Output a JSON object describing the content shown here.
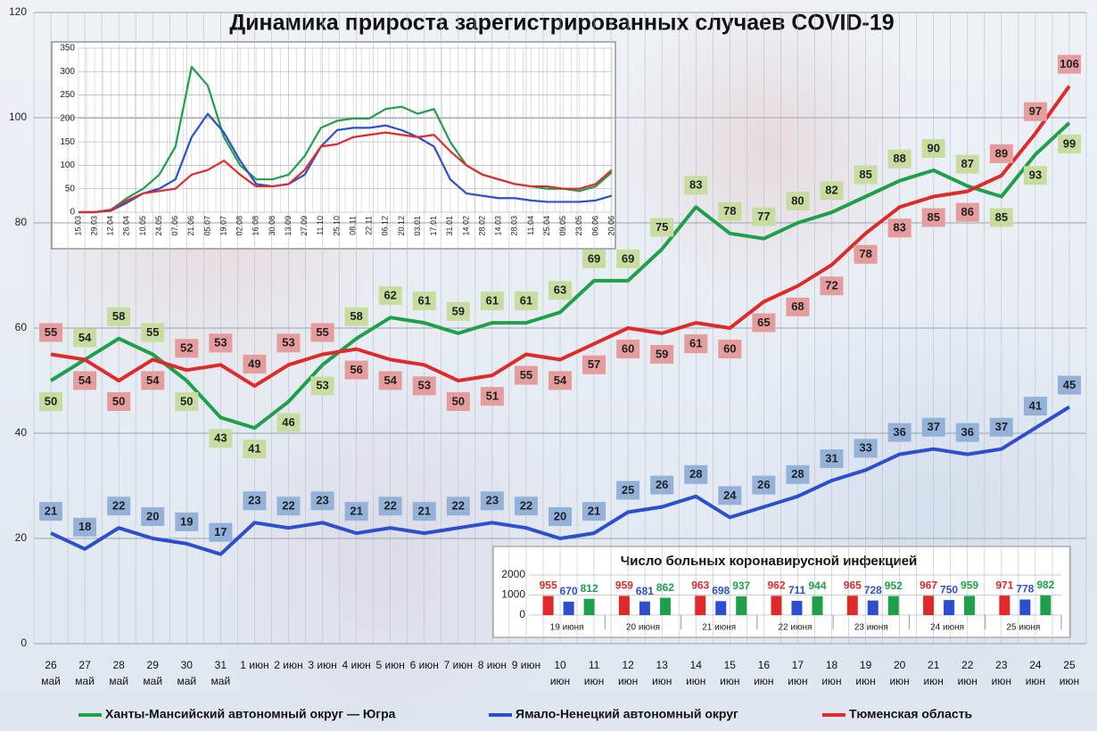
{
  "chart_data": [
    {
      "type": "line",
      "title": "Динамика прироста зарегистрированных случаев COVID-19",
      "categories": [
        "26 май",
        "27 май",
        "28 май",
        "29 май",
        "30 май",
        "31 май",
        "1 июн",
        "2 июн",
        "3 июн",
        "4 июн",
        "5 июн",
        "6 июн",
        "7 июн",
        "8 июн",
        "9 июн",
        "10 июн",
        "11 июн",
        "12 июн",
        "13 июн",
        "14 июн",
        "15 июн",
        "16 июн",
        "17 июн",
        "18 июн",
        "19 июн",
        "20 июн",
        "21 июн",
        "22 июн",
        "23 июн",
        "24 июн",
        "25 июн"
      ],
      "series": [
        {
          "name": "Ханты-Мансийский автономный округ — Югра",
          "color": "#1ea04a",
          "label_color": "#c8dca0",
          "values": [
            50,
            54,
            58,
            55,
            50,
            43,
            41,
            46,
            53,
            58,
            62,
            61,
            59,
            61,
            61,
            63,
            69,
            69,
            75,
            83,
            78,
            77,
            80,
            82,
            85,
            88,
            90,
            87,
            85,
            93,
            99
          ]
        },
        {
          "name": "Ямало-Ненецкий автономный округ",
          "color": "#2c4fd0",
          "label_color": "#93b1d9",
          "values": [
            21,
            18,
            22,
            20,
            19,
            17,
            23,
            22,
            23,
            21,
            22,
            21,
            22,
            23,
            22,
            20,
            21,
            25,
            26,
            28,
            24,
            26,
            28,
            31,
            33,
            36,
            37,
            36,
            37,
            41,
            45
          ]
        },
        {
          "name": "Тюменская область",
          "color": "#e02a2a",
          "label_color": "#e49c9c",
          "values": [
            55,
            54,
            50,
            54,
            52,
            53,
            49,
            53,
            55,
            56,
            54,
            53,
            50,
            51,
            55,
            54,
            57,
            60,
            59,
            61,
            60,
            65,
            68,
            72,
            78,
            83,
            85,
            86,
            89,
            97,
            106
          ]
        }
      ],
      "ylim": [
        0,
        120
      ],
      "yticks": [
        0,
        20,
        40,
        60,
        80,
        100,
        120
      ],
      "grid": true,
      "legend": "bottom"
    },
    {
      "type": "line",
      "categories": [
        "15.03",
        "29.03",
        "12.04",
        "26.04",
        "10.05",
        "24.05",
        "07.06",
        "21.06",
        "05.07",
        "19.07",
        "02.08",
        "16.08",
        "30.08",
        "13.09",
        "27.09",
        "11.10",
        "25.10",
        "08.11",
        "22.11",
        "06.12",
        "20.12",
        "03.01",
        "17.01",
        "31.01",
        "14.02",
        "28.02",
        "14.03",
        "28.03",
        "11.04",
        "25.04",
        "09.05",
        "23.05",
        "06.06",
        "20.06"
      ],
      "series": [
        {
          "color": "#1ea04a",
          "values": [
            0,
            0,
            5,
            30,
            50,
            80,
            140,
            310,
            270,
            160,
            100,
            70,
            70,
            80,
            120,
            180,
            195,
            200,
            200,
            220,
            225,
            210,
            220,
            150,
            100,
            80,
            70,
            60,
            55,
            50,
            50,
            45,
            55,
            85
          ]
        },
        {
          "color": "#2c4fd0",
          "values": [
            0,
            0,
            3,
            20,
            40,
            50,
            70,
            160,
            210,
            170,
            110,
            60,
            55,
            60,
            80,
            140,
            175,
            180,
            180,
            185,
            175,
            160,
            140,
            70,
            40,
            35,
            30,
            30,
            25,
            22,
            22,
            22,
            25,
            35
          ]
        },
        {
          "color": "#e02a2a",
          "values": [
            0,
            0,
            5,
            25,
            40,
            45,
            50,
            80,
            90,
            110,
            80,
            55,
            55,
            60,
            90,
            140,
            145,
            160,
            165,
            170,
            165,
            160,
            165,
            130,
            100,
            80,
            70,
            60,
            55,
            55,
            50,
            50,
            60,
            90
          ]
        }
      ],
      "ylim": [
        0,
        350
      ],
      "yticks": [
        0,
        50,
        100,
        150,
        200,
        250,
        300,
        350
      ],
      "grid": true
    },
    {
      "type": "bar",
      "title": "Число больных коронавирусной инфекцией",
      "categories": [
        "19 июня",
        "20 июня",
        "21 июня",
        "22 июня",
        "23 июня",
        "24 июня",
        "25 июня"
      ],
      "series": [
        {
          "color": "#e02a2a",
          "values": [
            955,
            959,
            963,
            962,
            965,
            967,
            971
          ]
        },
        {
          "color": "#2c4fd0",
          "values": [
            670,
            681,
            698,
            711,
            728,
            750,
            778
          ]
        },
        {
          "color": "#1ea04a",
          "values": [
            812,
            862,
            937,
            944,
            952,
            959,
            982
          ]
        }
      ],
      "ylim": [
        0,
        2000
      ],
      "yticks": [
        0,
        1000,
        2000
      ],
      "grid": true
    }
  ]
}
